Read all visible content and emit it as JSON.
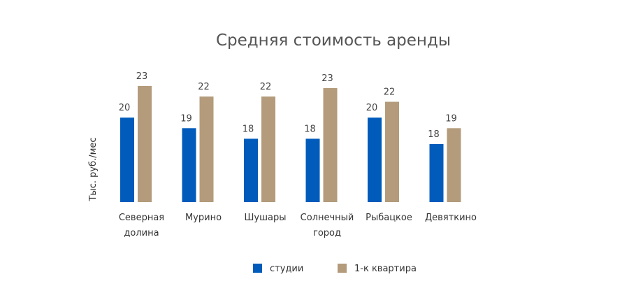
{
  "chart_data": {
    "type": "bar",
    "title": "Средняя стоимость аренды",
    "ylabel": "Тыс. руб./мес",
    "xlabel": "",
    "ylim": [
      12,
      24
    ],
    "grid": false,
    "legend_position": "bottom",
    "categories": [
      [
        "Северная",
        "долина"
      ],
      [
        "Мурино"
      ],
      [
        "Шушары"
      ],
      [
        "Солнечный",
        "город"
      ],
      [
        "Рыбацкое"
      ],
      [
        "Девяткино"
      ]
    ],
    "series": [
      {
        "name": "студии",
        "color": "#005bbb",
        "values": [
          20,
          19,
          18,
          18,
          20,
          17.5
        ],
        "labels": [
          "20",
          "19",
          "18",
          "18",
          "20",
          "18"
        ]
      },
      {
        "name": "1-к квартира",
        "color": "#b39b7b",
        "values": [
          23,
          22,
          22,
          22.8,
          21.5,
          19
        ],
        "labels": [
          "23",
          "22",
          "22",
          "23",
          "22",
          "19"
        ]
      }
    ]
  }
}
